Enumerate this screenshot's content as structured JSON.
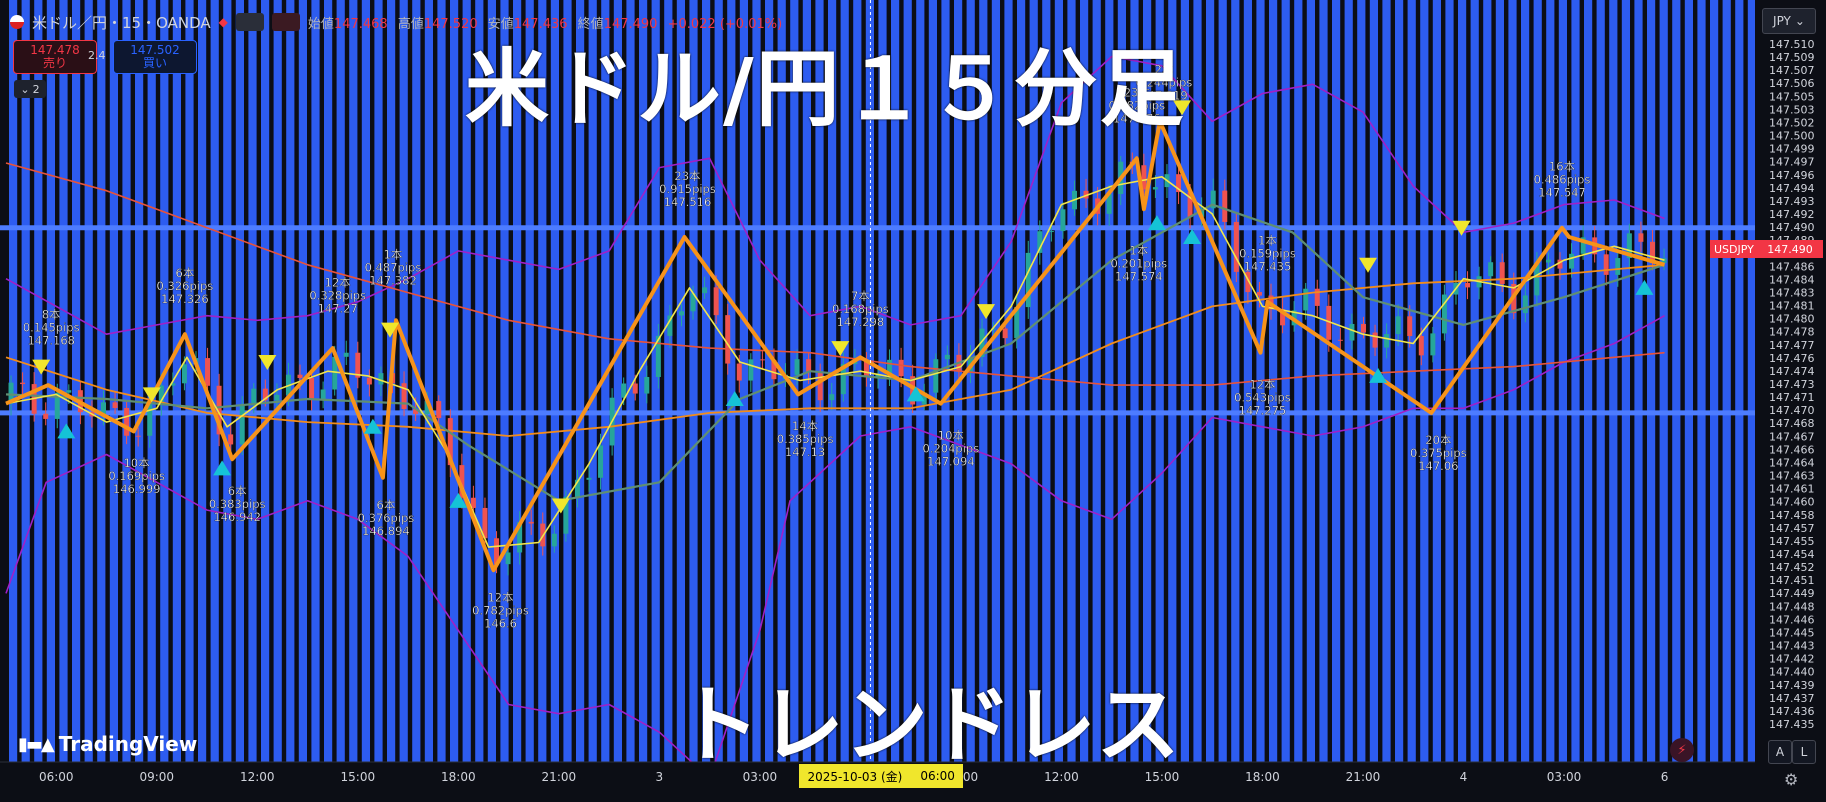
{
  "header": {
    "symbol_title": "米ドル／円・15・OANDA",
    "open_label": "始値",
    "open": "147.468",
    "high_label": "高値",
    "high": "147.520",
    "low_label": "安値",
    "low": "147.436",
    "close_label": "終値",
    "close": "147.490",
    "change": "+0.022 (+0.01%)"
  },
  "trade_panel": {
    "sell_price": "147.478",
    "sell_label": "売り",
    "spread": "2.4",
    "buy_price": "147.502",
    "buy_label": "買い",
    "collapse_count": "2"
  },
  "overlay_text": {
    "title": "米ドル/円１５分足",
    "subtitle": "トレンドレス"
  },
  "branding": {
    "logo": "TradingView"
  },
  "price_axis": {
    "currency_button": "JPY",
    "symbol_tag": "USDJPY",
    "current_price_tag": "147.490"
  },
  "time_axis": {
    "date_badge_date": "2025-10-03 (金)",
    "date_badge_time": "06:00"
  },
  "bottom_buttons": {
    "auto": "A",
    "log": "L"
  },
  "colors": {
    "background": "#0c0e15",
    "stripe_blue": "#2d5cf0",
    "zigzag": "#f7931a",
    "bollinger": "#a020c8",
    "ma_fast": "#f2e64a",
    "ma_mid": "#5f8f73",
    "ma_slow": "#f28c1a",
    "ma_long": "#e8533a",
    "up_marker": "#15c3d6",
    "down_marker": "#f0e62c",
    "candle_up": "#26a69a",
    "candle_down": "#ef5350",
    "hline": "#4d7cff"
  },
  "chart_data": {
    "type": "line",
    "y_axis": {
      "ylim": [
        147.434,
        147.512
      ],
      "ticks": [
        "147.510",
        "147.509",
        "147.507",
        "147.506",
        "147.505",
        "147.503",
        "147.502",
        "147.500",
        "147.499",
        "147.497",
        "147.496",
        "147.494",
        "147.493",
        "147.492",
        "147.490",
        "147.489",
        "147.487",
        "147.486",
        "147.484",
        "147.483",
        "147.481",
        "147.480",
        "147.478",
        "147.477",
        "147.476",
        "147.474",
        "147.473",
        "147.471",
        "147.470",
        "147.468",
        "147.467",
        "147.466",
        "147.464",
        "147.463",
        "147.461",
        "147.460",
        "147.458",
        "147.457",
        "147.455",
        "147.454",
        "147.452",
        "147.451",
        "147.449",
        "147.448",
        "147.446",
        "147.445",
        "147.443",
        "147.442",
        "147.440",
        "147.439",
        "147.437",
        "147.436",
        "147.435"
      ]
    },
    "x_axis": {
      "labels": [
        {
          "t": 0.5,
          "label": "06:00"
        },
        {
          "t": 1.5,
          "label": "09:00"
        },
        {
          "t": 2.5,
          "label": "12:00"
        },
        {
          "t": 3.5,
          "label": "15:00"
        },
        {
          "t": 4.5,
          "label": "18:00"
        },
        {
          "t": 5.5,
          "label": "21:00"
        },
        {
          "t": 6.5,
          "label": "3"
        },
        {
          "t": 7.5,
          "label": "03:00"
        },
        {
          "t": 9.5,
          "label": "09:00"
        },
        {
          "t": 10.5,
          "label": "12:00"
        },
        {
          "t": 11.5,
          "label": "15:00"
        },
        {
          "t": 12.5,
          "label": "18:00"
        },
        {
          "t": 13.5,
          "label": "21:00"
        },
        {
          "t": 14.5,
          "label": "4"
        },
        {
          "t": 15.5,
          "label": "03:00"
        },
        {
          "t": 16.5,
          "label": "6"
        }
      ],
      "xlim": [
        0,
        17.4
      ],
      "crosshair_t": 8.6
    },
    "horizontal_lines": [
      147.4915,
      147.4715
    ],
    "zigzag_points": [
      {
        "t": 0.0,
        "p": 147.4725
      },
      {
        "t": 0.42,
        "p": 147.4745
      },
      {
        "t": 1.27,
        "p": 147.4695
      },
      {
        "t": 1.78,
        "p": 147.48
      },
      {
        "t": 2.25,
        "p": 147.4665
      },
      {
        "t": 3.25,
        "p": 147.4785
      },
      {
        "t": 3.75,
        "p": 147.4645
      },
      {
        "t": 3.88,
        "p": 147.4815
      },
      {
        "t": 4.85,
        "p": 147.4545
      },
      {
        "t": 6.75,
        "p": 147.4905
      },
      {
        "t": 7.88,
        "p": 147.4735
      },
      {
        "t": 8.5,
        "p": 147.4775
      },
      {
        "t": 9.3,
        "p": 147.4725
      },
      {
        "t": 11.25,
        "p": 147.499
      },
      {
        "t": 11.32,
        "p": 147.4935
      },
      {
        "t": 11.48,
        "p": 147.503
      },
      {
        "t": 12.48,
        "p": 147.478
      },
      {
        "t": 12.55,
        "p": 147.4835
      },
      {
        "t": 14.18,
        "p": 147.4715
      },
      {
        "t": 15.48,
        "p": 147.4915
      },
      {
        "t": 15.55,
        "p": 147.4905
      },
      {
        "t": 16.5,
        "p": 147.4875
      }
    ],
    "series_ma_fast": [
      {
        "t": 0.0,
        "p": 147.4725
      },
      {
        "t": 0.5,
        "p": 147.4735
      },
      {
        "t": 1.0,
        "p": 147.4705
      },
      {
        "t": 1.5,
        "p": 147.472
      },
      {
        "t": 1.8,
        "p": 147.4775
      },
      {
        "t": 2.2,
        "p": 147.47
      },
      {
        "t": 2.7,
        "p": 147.474
      },
      {
        "t": 3.2,
        "p": 147.476
      },
      {
        "t": 3.6,
        "p": 147.4755
      },
      {
        "t": 4.0,
        "p": 147.474
      },
      {
        "t": 4.4,
        "p": 147.467
      },
      {
        "t": 4.8,
        "p": 147.457
      },
      {
        "t": 5.3,
        "p": 147.4575
      },
      {
        "t": 5.8,
        "p": 147.466
      },
      {
        "t": 6.3,
        "p": 147.476
      },
      {
        "t": 6.8,
        "p": 147.485
      },
      {
        "t": 7.3,
        "p": 147.477
      },
      {
        "t": 7.9,
        "p": 147.475
      },
      {
        "t": 8.5,
        "p": 147.476
      },
      {
        "t": 9.0,
        "p": 147.475
      },
      {
        "t": 9.5,
        "p": 147.4765
      },
      {
        "t": 10.0,
        "p": 147.483
      },
      {
        "t": 10.5,
        "p": 147.494
      },
      {
        "t": 11.0,
        "p": 147.496
      },
      {
        "t": 11.5,
        "p": 147.497
      },
      {
        "t": 12.0,
        "p": 147.493
      },
      {
        "t": 12.5,
        "p": 147.483
      },
      {
        "t": 13.0,
        "p": 147.482
      },
      {
        "t": 13.5,
        "p": 147.48
      },
      {
        "t": 14.0,
        "p": 147.479
      },
      {
        "t": 14.5,
        "p": 147.486
      },
      {
        "t": 15.0,
        "p": 147.485
      },
      {
        "t": 15.5,
        "p": 147.488
      },
      {
        "t": 16.0,
        "p": 147.4895
      },
      {
        "t": 16.5,
        "p": 147.488
      }
    ],
    "series_ma_mid": [
      {
        "t": 0.0,
        "p": 147.4735
      },
      {
        "t": 1.0,
        "p": 147.473
      },
      {
        "t": 2.0,
        "p": 147.472
      },
      {
        "t": 3.0,
        "p": 147.473
      },
      {
        "t": 4.0,
        "p": 147.4725
      },
      {
        "t": 4.6,
        "p": 147.468
      },
      {
        "t": 5.5,
        "p": 147.462
      },
      {
        "t": 6.5,
        "p": 147.464
      },
      {
        "t": 7.3,
        "p": 147.473
      },
      {
        "t": 8.0,
        "p": 147.476
      },
      {
        "t": 9.0,
        "p": 147.475
      },
      {
        "t": 10.0,
        "p": 147.479
      },
      {
        "t": 11.0,
        "p": 147.488
      },
      {
        "t": 12.0,
        "p": 147.494
      },
      {
        "t": 12.8,
        "p": 147.491
      },
      {
        "t": 13.5,
        "p": 147.484
      },
      {
        "t": 14.5,
        "p": 147.481
      },
      {
        "t": 15.5,
        "p": 147.484
      },
      {
        "t": 16.5,
        "p": 147.4875
      }
    ],
    "series_ma_slow": [
      {
        "t": 0.0,
        "p": 147.4775
      },
      {
        "t": 1.0,
        "p": 147.474
      },
      {
        "t": 2.0,
        "p": 147.4715
      },
      {
        "t": 3.0,
        "p": 147.4705
      },
      {
        "t": 4.0,
        "p": 147.47
      },
      {
        "t": 5.0,
        "p": 147.469
      },
      {
        "t": 6.0,
        "p": 147.47
      },
      {
        "t": 7.0,
        "p": 147.4715
      },
      {
        "t": 8.0,
        "p": 147.472
      },
      {
        "t": 9.0,
        "p": 147.472
      },
      {
        "t": 10.0,
        "p": 147.474
      },
      {
        "t": 11.0,
        "p": 147.479
      },
      {
        "t": 12.0,
        "p": 147.483
      },
      {
        "t": 13.0,
        "p": 147.4845
      },
      {
        "t": 14.0,
        "p": 147.4855
      },
      {
        "t": 15.0,
        "p": 147.486
      },
      {
        "t": 16.0,
        "p": 147.487
      },
      {
        "t": 16.5,
        "p": 147.4875
      }
    ],
    "series_ma_long": [
      {
        "t": 0.0,
        "p": 147.4985
      },
      {
        "t": 1.0,
        "p": 147.4955
      },
      {
        "t": 2.0,
        "p": 147.4915
      },
      {
        "t": 3.0,
        "p": 147.4875
      },
      {
        "t": 4.0,
        "p": 147.4845
      },
      {
        "t": 5.0,
        "p": 147.4815
      },
      {
        "t": 6.0,
        "p": 147.4795
      },
      {
        "t": 7.0,
        "p": 147.4785
      },
      {
        "t": 8.0,
        "p": 147.478
      },
      {
        "t": 9.0,
        "p": 147.4765
      },
      {
        "t": 10.0,
        "p": 147.4755
      },
      {
        "t": 11.0,
        "p": 147.4745
      },
      {
        "t": 12.0,
        "p": 147.4745
      },
      {
        "t": 13.0,
        "p": 147.4755
      },
      {
        "t": 14.0,
        "p": 147.476
      },
      {
        "t": 15.0,
        "p": 147.4765
      },
      {
        "t": 16.0,
        "p": 147.4775
      },
      {
        "t": 16.5,
        "p": 147.478
      }
    ],
    "series_bb_upper": [
      {
        "t": 0.0,
        "p": 147.486
      },
      {
        "t": 0.5,
        "p": 147.483
      },
      {
        "t": 1.0,
        "p": 147.48
      },
      {
        "t": 1.5,
        "p": 147.481
      },
      {
        "t": 2.0,
        "p": 147.482
      },
      {
        "t": 2.5,
        "p": 147.4815
      },
      {
        "t": 3.0,
        "p": 147.482
      },
      {
        "t": 3.5,
        "p": 147.4835
      },
      {
        "t": 4.0,
        "p": 147.486
      },
      {
        "t": 4.5,
        "p": 147.489
      },
      {
        "t": 5.0,
        "p": 147.488
      },
      {
        "t": 5.5,
        "p": 147.487
      },
      {
        "t": 6.0,
        "p": 147.489
      },
      {
        "t": 6.5,
        "p": 147.498
      },
      {
        "t": 7.0,
        "p": 147.499
      },
      {
        "t": 7.5,
        "p": 147.488
      },
      {
        "t": 8.0,
        "p": 147.482
      },
      {
        "t": 8.5,
        "p": 147.483
      },
      {
        "t": 9.0,
        "p": 147.481
      },
      {
        "t": 9.5,
        "p": 147.482
      },
      {
        "t": 10.0,
        "p": 147.49
      },
      {
        "t": 10.5,
        "p": 147.505
      },
      {
        "t": 11.0,
        "p": 147.51
      },
      {
        "t": 11.5,
        "p": 147.509
      },
      {
        "t": 12.0,
        "p": 147.503
      },
      {
        "t": 12.5,
        "p": 147.506
      },
      {
        "t": 13.0,
        "p": 147.507
      },
      {
        "t": 13.5,
        "p": 147.504
      },
      {
        "t": 14.0,
        "p": 147.496
      },
      {
        "t": 14.5,
        "p": 147.491
      },
      {
        "t": 15.0,
        "p": 147.492
      },
      {
        "t": 15.5,
        "p": 147.494
      },
      {
        "t": 16.0,
        "p": 147.4945
      },
      {
        "t": 16.5,
        "p": 147.4925
      }
    ],
    "series_bb_lower": [
      {
        "t": 0.0,
        "p": 147.452
      },
      {
        "t": 0.4,
        "p": 147.464
      },
      {
        "t": 1.0,
        "p": 147.467
      },
      {
        "t": 1.5,
        "p": 147.464
      },
      {
        "t": 2.0,
        "p": 147.461
      },
      {
        "t": 2.5,
        "p": 147.46
      },
      {
        "t": 3.0,
        "p": 147.462
      },
      {
        "t": 3.5,
        "p": 147.46
      },
      {
        "t": 4.0,
        "p": 147.456
      },
      {
        "t": 4.5,
        "p": 147.448
      },
      {
        "t": 5.0,
        "p": 147.44
      },
      {
        "t": 5.5,
        "p": 147.439
      },
      {
        "t": 6.0,
        "p": 147.44
      },
      {
        "t": 6.5,
        "p": 147.437
      },
      {
        "t": 7.0,
        "p": 147.432
      },
      {
        "t": 7.5,
        "p": 147.448
      },
      {
        "t": 7.8,
        "p": 147.462
      },
      {
        "t": 8.5,
        "p": 147.469
      },
      {
        "t": 9.0,
        "p": 147.47
      },
      {
        "t": 9.5,
        "p": 147.468
      },
      {
        "t": 10.0,
        "p": 147.466
      },
      {
        "t": 10.5,
        "p": 147.462
      },
      {
        "t": 11.0,
        "p": 147.46
      },
      {
        "t": 11.5,
        "p": 147.465
      },
      {
        "t": 12.0,
        "p": 147.471
      },
      {
        "t": 12.5,
        "p": 147.47
      },
      {
        "t": 13.0,
        "p": 147.469
      },
      {
        "t": 13.5,
        "p": 147.47
      },
      {
        "t": 14.0,
        "p": 147.472
      },
      {
        "t": 14.5,
        "p": 147.472
      },
      {
        "t": 15.0,
        "p": 147.474
      },
      {
        "t": 15.5,
        "p": 147.477
      },
      {
        "t": 16.0,
        "p": 147.479
      },
      {
        "t": 16.5,
        "p": 147.482
      }
    ],
    "up_markers": [
      {
        "t": 0.6,
        "p": 147.4695
      },
      {
        "t": 2.15,
        "p": 147.4655
      },
      {
        "t": 3.65,
        "p": 147.47
      },
      {
        "t": 4.5,
        "p": 147.462
      },
      {
        "t": 7.25,
        "p": 147.473
      },
      {
        "t": 9.05,
        "p": 147.4735
      },
      {
        "t": 11.45,
        "p": 147.492
      },
      {
        "t": 11.8,
        "p": 147.4905
      },
      {
        "t": 13.65,
        "p": 147.4755
      },
      {
        "t": 16.3,
        "p": 147.485
      }
    ],
    "down_markers": [
      {
        "t": 0.35,
        "p": 147.4765
      },
      {
        "t": 1.45,
        "p": 147.4735
      },
      {
        "t": 2.6,
        "p": 147.477
      },
      {
        "t": 3.82,
        "p": 147.4805
      },
      {
        "t": 5.52,
        "p": 147.4615
      },
      {
        "t": 8.3,
        "p": 147.4785
      },
      {
        "t": 9.75,
        "p": 147.4825
      },
      {
        "t": 11.7,
        "p": 147.5045
      },
      {
        "t": 13.55,
        "p": 147.4875
      },
      {
        "t": 14.48,
        "p": 147.4915
      }
    ],
    "swing_labels": [
      {
        "t": 0.45,
        "p": 147.478,
        "pos": "above",
        "bars": "8本",
        "pips": "0.145pips",
        "price": "147.168"
      },
      {
        "t": 1.3,
        "p": 147.4665,
        "pos": "below",
        "bars": "10本",
        "pips": "0.169pips",
        "price": "146.999"
      },
      {
        "t": 1.78,
        "p": 147.4825,
        "pos": "above",
        "bars": "6本",
        "pips": "0.326pips",
        "price": "147.326"
      },
      {
        "t": 2.3,
        "p": 147.4635,
        "pos": "below",
        "bars": "6本",
        "pips": "0.383pips",
        "price": "146.942"
      },
      {
        "t": 3.3,
        "p": 147.4815,
        "pos": "above",
        "bars": "12本",
        "pips": "0.328pips",
        "price": "147.27"
      },
      {
        "t": 3.85,
        "p": 147.4845,
        "pos": "above",
        "bars": "1本",
        "pips": "0.487pips",
        "price": "147.382"
      },
      {
        "t": 3.78,
        "p": 147.462,
        "pos": "below",
        "bars": "6本",
        "pips": "0.376pips",
        "price": "146.894"
      },
      {
        "t": 4.92,
        "p": 147.452,
        "pos": "below",
        "bars": "12本",
        "pips": "0.782pips",
        "price": "146.6"
      },
      {
        "t": 6.78,
        "p": 147.493,
        "pos": "above",
        "bars": "23本",
        "pips": "0.915pips",
        "price": "147.516"
      },
      {
        "t": 7.95,
        "p": 147.4705,
        "pos": "below",
        "bars": "14本",
        "pips": "0.385pips",
        "price": "147.13"
      },
      {
        "t": 8.5,
        "p": 147.48,
        "pos": "above",
        "bars": "7本",
        "pips": "0.168pips",
        "price": "147.298"
      },
      {
        "t": 9.4,
        "p": 147.4695,
        "pos": "below",
        "bars": "10本",
        "pips": "0.204pips",
        "price": "147.094"
      },
      {
        "t": 11.27,
        "p": 147.4895,
        "pos": "below",
        "bars": "1本",
        "pips": "0.201pips",
        "price": "147.574"
      },
      {
        "t": 11.25,
        "p": 147.502,
        "pos": "above",
        "bars": "23本",
        "pips": "0.682pips",
        "price": "147.776"
      },
      {
        "t": 11.52,
        "p": 147.5045,
        "pos": "above",
        "bars": "2本",
        "pips": "0.244pips",
        "price": "147.819"
      },
      {
        "t": 12.55,
        "p": 147.486,
        "pos": "above",
        "bars": "1本",
        "pips": "0.159pips",
        "price": "147.435"
      },
      {
        "t": 12.5,
        "p": 147.475,
        "pos": "below",
        "bars": "12本",
        "pips": "0.543pips",
        "price": "147.275"
      },
      {
        "t": 14.25,
        "p": 147.469,
        "pos": "below",
        "bars": "20本",
        "pips": "0.375pips",
        "price": "147.06"
      },
      {
        "t": 15.48,
        "p": 147.494,
        "pos": "above",
        "bars": "16本",
        "pips": "0.486pips",
        "price": "147.547"
      }
    ]
  }
}
